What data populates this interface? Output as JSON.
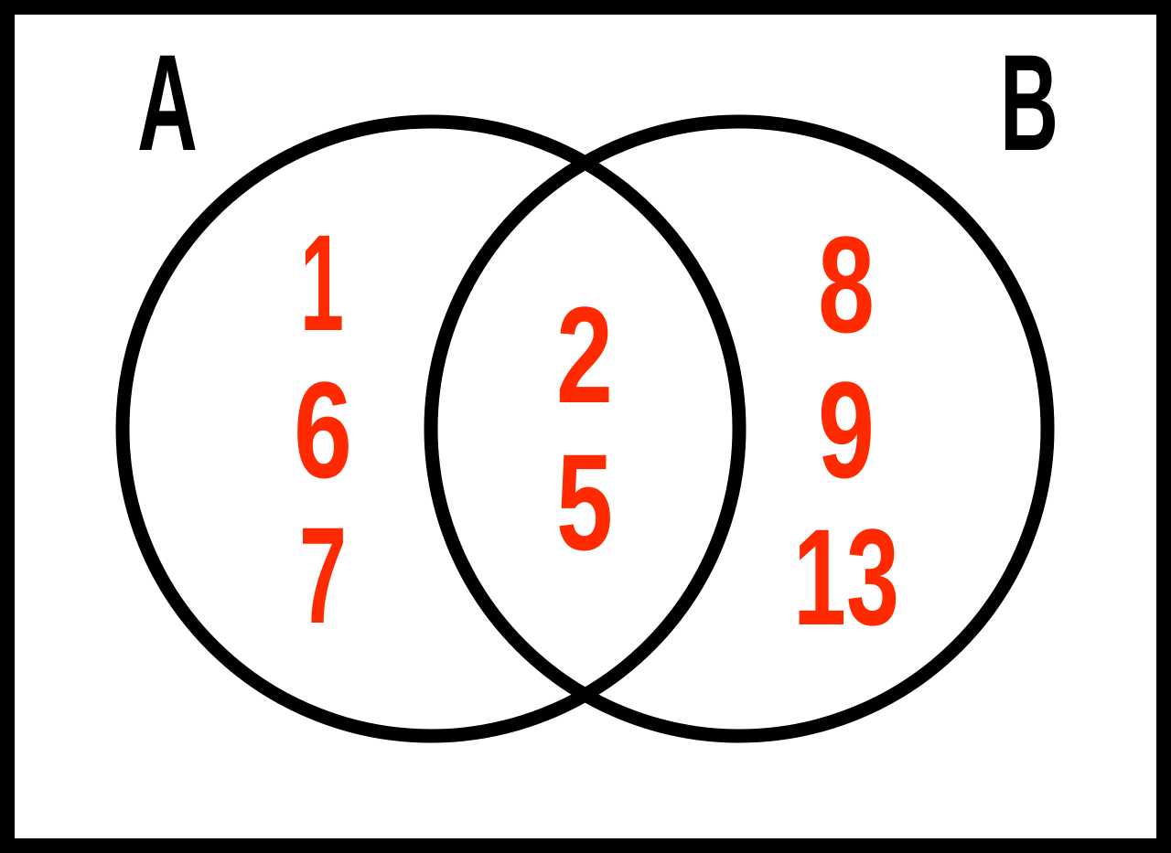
{
  "diagram": {
    "type": "venn",
    "frame_color": "#000000",
    "circle_color": "#000000",
    "label_color": "#000000",
    "element_color": "#ff2a00",
    "sets": {
      "a": {
        "label": "A"
      },
      "b": {
        "label": "B"
      }
    },
    "regions": {
      "a_only": [
        "1",
        "6",
        "7"
      ],
      "intersection": [
        "2",
        "5"
      ],
      "b_only": [
        "8",
        "9",
        "13"
      ]
    }
  }
}
